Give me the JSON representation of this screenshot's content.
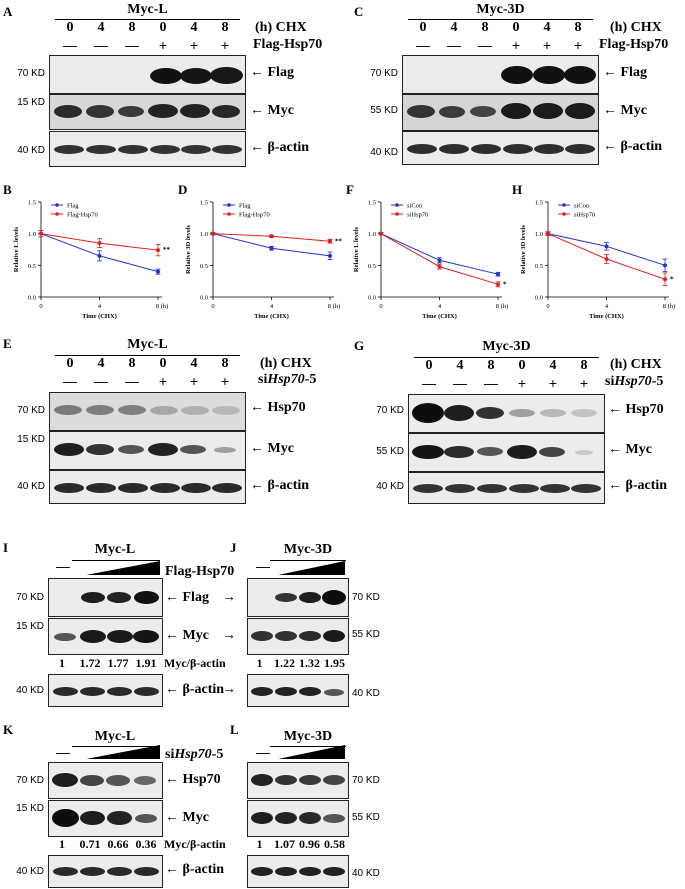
{
  "figure": {
    "panels": {
      "A": {
        "letter": "A",
        "title": "Myc-L",
        "chx_label": "(h)  CHX",
        "flag_hsp70_label": "Flag-Hsp70",
        "times": [
          "0",
          "4",
          "8",
          "0",
          "4",
          "8"
        ],
        "treat": [
          "—",
          "—",
          "—",
          "+",
          "+",
          "+"
        ],
        "rows": [
          {
            "kd": "70 KD",
            "name": "← Flag"
          },
          {
            "kd": "15 KD",
            "name": "← Myc"
          },
          {
            "kd": "40 KD",
            "name": "← β-actin"
          }
        ]
      },
      "C": {
        "letter": "C",
        "title": "Myc-3D",
        "chx_label": "(h)  CHX",
        "flag_hsp70_label": "Flag-Hsp70",
        "times": [
          "0",
          "4",
          "8",
          "0",
          "4",
          "8"
        ],
        "treat": [
          "—",
          "—",
          "—",
          "+",
          "+",
          "+"
        ],
        "rows": [
          {
            "kd": "70 KD",
            "name": "← Flag"
          },
          {
            "kd": "55 KD",
            "name": "← Myc"
          },
          {
            "kd": "40 KD",
            "name": "← β-actin"
          }
        ]
      },
      "E": {
        "letter": "E",
        "title": "Myc-L",
        "chx_label": "(h)  CHX",
        "si_label_prefix": "si",
        "si_label_italic": "Hsp70",
        "si_label_suffix": "-5",
        "times": [
          "0",
          "4",
          "8",
          "0",
          "4",
          "8"
        ],
        "treat": [
          "—",
          "—",
          "—",
          "+",
          "+",
          "+"
        ],
        "rows": [
          {
            "kd": "70 KD",
            "name": "← Hsp70"
          },
          {
            "kd": "15 KD",
            "name": "← Myc"
          },
          {
            "kd": "40 KD",
            "name": "← β-actin"
          }
        ]
      },
      "G": {
        "letter": "G",
        "title": "Myc-3D",
        "chx_label": "(h)  CHX",
        "si_label_prefix": "si",
        "si_label_italic": "Hsp70",
        "si_label_suffix": "-5",
        "times": [
          "0",
          "4",
          "8",
          "0",
          "4",
          "8"
        ],
        "treat": [
          "—",
          "—",
          "—",
          "+",
          "+",
          "+"
        ],
        "rows": [
          {
            "kd": "70 KD",
            "name": "← Hsp70"
          },
          {
            "kd": "55 KD",
            "name": "← Myc"
          },
          {
            "kd": "40 KD",
            "name": "← β-actin"
          }
        ]
      },
      "I": {
        "letter": "I",
        "title": "Myc-L",
        "treat_label": "Flag-Hsp70",
        "ctrl": "—",
        "rows": [
          {
            "kd": "70 KD",
            "name": "Flag"
          },
          {
            "kd": "15 KD",
            "name": "Myc"
          },
          {
            "kd": "40 KD",
            "name": "β-actin"
          }
        ],
        "ratio_label": "Myc/β-actin",
        "ratios": [
          "1",
          "1.72",
          "1.77",
          "1.91"
        ]
      },
      "J": {
        "letter": "J",
        "title": "Myc-3D",
        "ctrl": "—",
        "rows": [
          {
            "kd": "70 KD"
          },
          {
            "kd": "55 KD"
          },
          {
            "kd": "40 KD"
          }
        ],
        "ratios": [
          "1",
          "1.22",
          "1.32",
          "1.95"
        ]
      },
      "K": {
        "letter": "K",
        "title": "Myc-L",
        "treat_prefix": "si",
        "treat_italic": "Hsp70",
        "treat_suffix": "-5",
        "ctrl": "—",
        "rows": [
          {
            "kd": "70 KD",
            "name": "Hsp70"
          },
          {
            "kd": "15 KD",
            "name": "Myc"
          },
          {
            "kd": "40 KD",
            "name": "β-actin"
          }
        ],
        "ratio_label": "Myc/β-actin",
        "ratios": [
          "1",
          "0.71",
          "0.66",
          "0.36"
        ]
      },
      "L": {
        "letter": "L",
        "title": "Myc-3D",
        "ctrl": "—",
        "rows": [
          {
            "kd": "70 KD"
          },
          {
            "kd": "55 KD"
          },
          {
            "kd": "40 KD"
          }
        ],
        "ratios": [
          "1",
          "1.07",
          "0.96",
          "0.58"
        ]
      }
    }
  },
  "chart_data": [
    {
      "panel": "B",
      "type": "line",
      "xlabel": "Time (CHX)",
      "ylabel": "Relative L levels",
      "x": [
        0,
        4,
        8
      ],
      "x_tick_labels": [
        "0",
        "4",
        "8 (h)"
      ],
      "ylim": [
        0,
        1.5
      ],
      "y_ticks": [
        "0.0",
        "0.5",
        "1.0",
        "1.5"
      ],
      "legend_position": "top-left",
      "significance": "**",
      "series": [
        {
          "name": "Flag",
          "color": "#2233cc",
          "values": [
            1.0,
            0.65,
            0.4
          ],
          "err": [
            0.05,
            0.08,
            0.04
          ]
        },
        {
          "name": "Flag-Hsp70",
          "color": "#e02020",
          "values": [
            1.0,
            0.85,
            0.74
          ],
          "err": [
            0.05,
            0.07,
            0.09
          ]
        }
      ]
    },
    {
      "panel": "D",
      "type": "line",
      "xlabel": "Time (CHX)",
      "ylabel": "Relative 3D levels",
      "x": [
        0,
        4,
        8
      ],
      "x_tick_labels": [
        "0",
        "4",
        "8 (h)"
      ],
      "ylim": [
        0,
        1.5
      ],
      "y_ticks": [
        "0.0",
        "0.5",
        "1.0",
        "1.5"
      ],
      "legend_position": "top-left",
      "significance": "**",
      "series": [
        {
          "name": "Flag",
          "color": "#2233cc",
          "values": [
            1.0,
            0.77,
            0.65
          ],
          "err": [
            0.02,
            0.03,
            0.06
          ]
        },
        {
          "name": "Flag-Hsp70",
          "color": "#e02020",
          "values": [
            1.0,
            0.96,
            0.88
          ],
          "err": [
            0.02,
            0.02,
            0.03
          ]
        }
      ]
    },
    {
      "panel": "F",
      "type": "line",
      "xlabel": "Time (CHX)",
      "ylabel": "Relative L levels",
      "x": [
        0,
        4,
        8
      ],
      "x_tick_labels": [
        "0",
        "4",
        "8 (h)"
      ],
      "ylim": [
        0,
        1.5
      ],
      "y_ticks": [
        "0.0",
        "0.5",
        "1.0",
        "1.5"
      ],
      "legend_position": "top-left",
      "significance": "*",
      "series": [
        {
          "name": "siCon",
          "color": "#2233cc",
          "values": [
            1.0,
            0.58,
            0.36
          ],
          "err": [
            0.02,
            0.04,
            0.03
          ]
        },
        {
          "name": "siHsp70",
          "color": "#e02020",
          "values": [
            1.0,
            0.48,
            0.2
          ],
          "err": [
            0.02,
            0.04,
            0.04
          ]
        }
      ]
    },
    {
      "panel": "H",
      "type": "line",
      "xlabel": "Time (CHX)",
      "ylabel": "Relative 3D levels",
      "x": [
        0,
        4,
        8
      ],
      "x_tick_labels": [
        "0",
        "4",
        "8 (h)"
      ],
      "ylim": [
        0,
        1.5
      ],
      "y_ticks": [
        "0.0",
        "0.5",
        "1.0",
        "1.5"
      ],
      "legend_position": "top-left",
      "significance": "*",
      "series": [
        {
          "name": "siCon",
          "color": "#2233cc",
          "values": [
            1.0,
            0.8,
            0.5
          ],
          "err": [
            0.03,
            0.06,
            0.1
          ]
        },
        {
          "name": "siHsp70",
          "color": "#e02020",
          "values": [
            1.0,
            0.6,
            0.28
          ],
          "err": [
            0.03,
            0.07,
            0.1
          ]
        }
      ]
    }
  ]
}
